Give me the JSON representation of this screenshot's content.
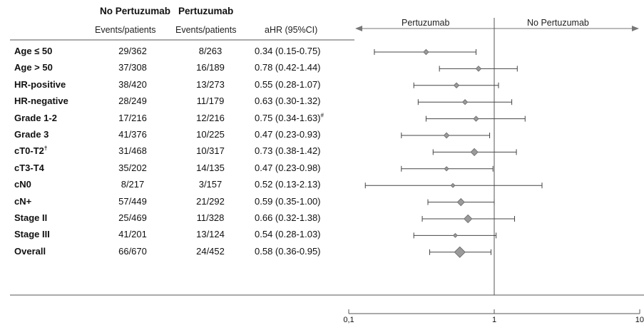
{
  "header": {
    "group_no_title": "No Pertuzumab",
    "group_yes_title": "Pertuzumab",
    "group_no_sub": "Events/patients",
    "group_yes_sub": "Events/patients",
    "hr_header": "aHR (95%CI)",
    "favor_left": "Pertuzumab",
    "favor_right": "No Pertuzumab"
  },
  "chart_data": {
    "type": "forest",
    "x_scale": "log",
    "xlim": [
      0.1,
      10
    ],
    "x_ticks": [
      {
        "value": 0.1,
        "label": "0,1"
      },
      {
        "value": 1,
        "label": "1"
      },
      {
        "value": 10,
        "label": "10"
      }
    ],
    "reference_line": 1,
    "marker_color": "#9a9a9a",
    "rows": [
      {
        "label": "Age ≤ 50",
        "sup": "",
        "no_pert": "29/362",
        "pert": "8/263",
        "hr_text": "0.34 (0.15-0.75)",
        "hr_sup": "",
        "hr": 0.34,
        "lo": 0.15,
        "hi": 0.75,
        "weight": 0.3
      },
      {
        "label": "Age > 50",
        "sup": "",
        "no_pert": "37/308",
        "pert": "16/189",
        "hr_text": "0.78 (0.42-1.44)",
        "hr_sup": "",
        "hr": 0.78,
        "lo": 0.42,
        "hi": 1.44,
        "weight": 0.3
      },
      {
        "label": "HR-positive",
        "sup": "",
        "no_pert": "38/420",
        "pert": "13/273",
        "hr_text": "0.55 (0.28-1.07)",
        "hr_sup": "",
        "hr": 0.55,
        "lo": 0.28,
        "hi": 1.07,
        "weight": 0.3
      },
      {
        "label": "HR-negative",
        "sup": "",
        "no_pert": "28/249",
        "pert": "11/179",
        "hr_text": "0.63 (0.30-1.32)",
        "hr_sup": "",
        "hr": 0.63,
        "lo": 0.3,
        "hi": 1.32,
        "weight": 0.28
      },
      {
        "label": "Grade 1-2",
        "sup": "",
        "no_pert": "17/216",
        "pert": "12/216",
        "hr_text": "0.75 (0.34-1.63)",
        "hr_sup": "#",
        "hr": 0.75,
        "lo": 0.34,
        "hi": 1.63,
        "weight": 0.28
      },
      {
        "label": "Grade 3",
        "sup": "",
        "no_pert": "41/376",
        "pert": "10/225",
        "hr_text": "0.47 (0.23-0.93)",
        "hr_sup": "",
        "hr": 0.47,
        "lo": 0.23,
        "hi": 0.93,
        "weight": 0.32
      },
      {
        "label": "cT0-T2",
        "sup": "†",
        "no_pert": "31/468",
        "pert": "10/317",
        "hr_text": "0.73 (0.38-1.42)",
        "hr_sup": "",
        "hr": 0.73,
        "lo": 0.38,
        "hi": 1.42,
        "weight": 0.55
      },
      {
        "label": "cT3-T4",
        "sup": "",
        "no_pert": "35/202",
        "pert": "14/135",
        "hr_text": "0.47 (0.23-0.98)",
        "hr_sup": "",
        "hr": 0.47,
        "lo": 0.23,
        "hi": 0.98,
        "weight": 0.18
      },
      {
        "label": "cN0",
        "sup": "",
        "no_pert": "8/217",
        "pert": "3/157",
        "hr_text": "0.52 (0.13-2.13)",
        "hr_sup": "",
        "hr": 0.52,
        "lo": 0.13,
        "hi": 2.13,
        "weight": 0.15
      },
      {
        "label": "cN+",
        "sup": "",
        "no_pert": "57/449",
        "pert": "21/292",
        "hr_text": "0.59 (0.35-1.00)",
        "hr_sup": "",
        "hr": 0.59,
        "lo": 0.35,
        "hi": 1.0,
        "weight": 0.55
      },
      {
        "label": "Stage II",
        "sup": "",
        "no_pert": "25/469",
        "pert": "11/328",
        "hr_text": "0.66 (0.32-1.38)",
        "hr_sup": "",
        "hr": 0.66,
        "lo": 0.32,
        "hi": 1.38,
        "weight": 0.65
      },
      {
        "label": "Stage III",
        "sup": "",
        "no_pert": "41/201",
        "pert": "13/124",
        "hr_text": "0.54 (0.28-1.03)",
        "hr_sup": "",
        "hr": 0.54,
        "lo": 0.28,
        "hi": 1.03,
        "weight": 0.15
      },
      {
        "label": "Overall",
        "sup": "",
        "no_pert": "66/670",
        "pert": "24/452",
        "hr_text": "0.58 (0.36-0.95)",
        "hr_sup": "",
        "hr": 0.58,
        "lo": 0.36,
        "hi": 0.95,
        "weight": 1.0
      }
    ]
  }
}
